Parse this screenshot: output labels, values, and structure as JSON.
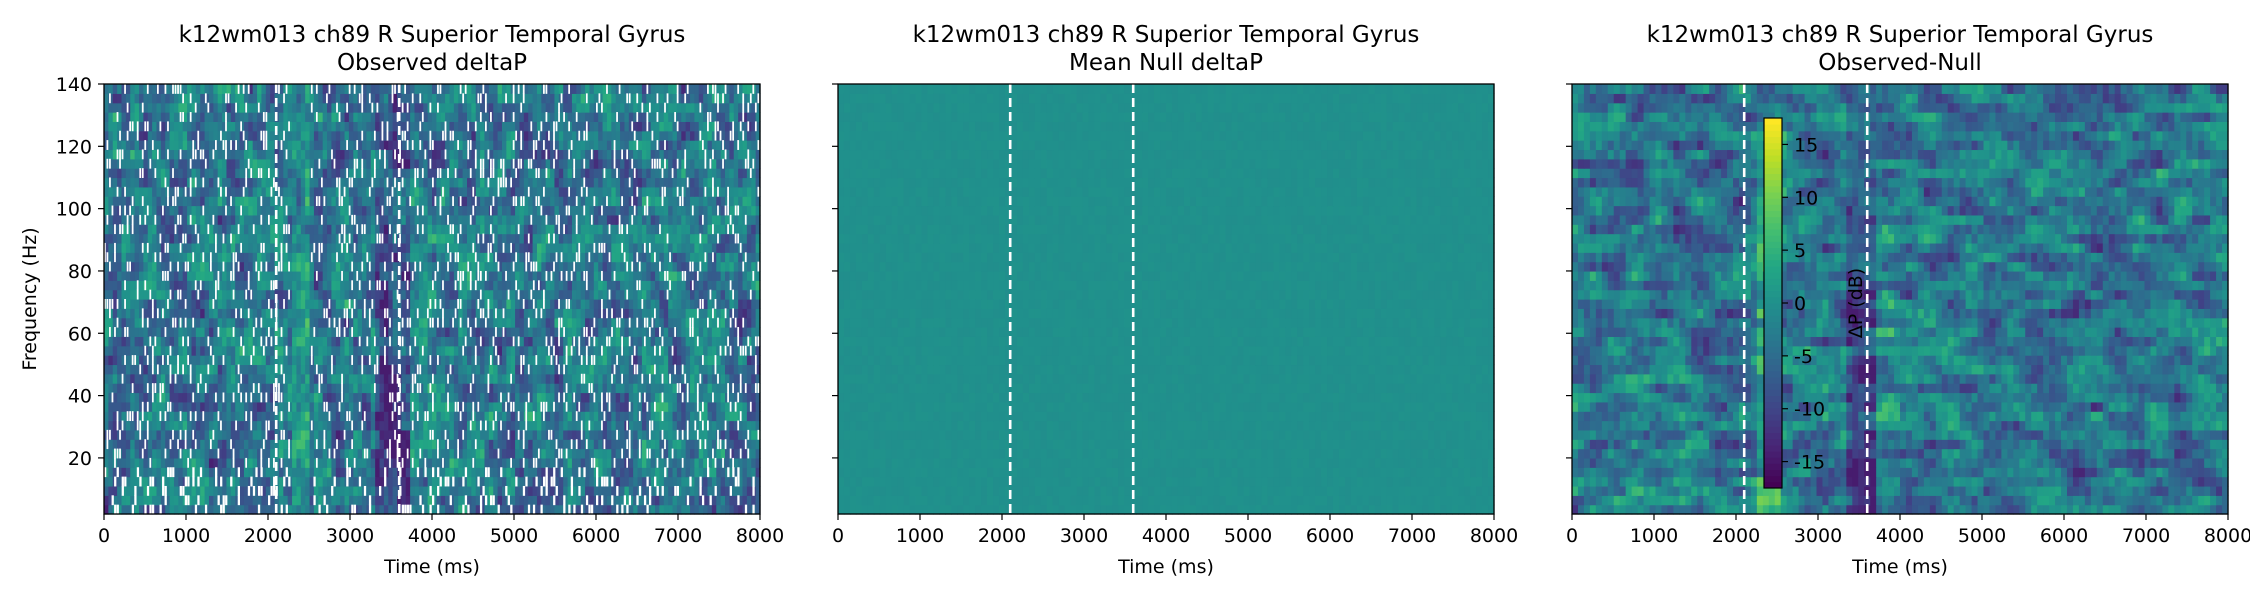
{
  "chart_data": [
    {
      "type": "heatmap",
      "title": "k12wm013 ch89 R Superior Temporal Gyrus",
      "subtitle": "Observed deltaP",
      "xlabel": "Time (ms)",
      "ylabel": "Frequency (Hz)",
      "xlim": [
        0,
        8000
      ],
      "ylim": [
        2,
        140
      ],
      "xticks": [
        0,
        1000,
        2000,
        3000,
        4000,
        5000,
        6000,
        7000,
        8000
      ],
      "yticks": [
        20,
        40,
        60,
        80,
        100,
        120,
        140
      ],
      "show_ytick_labels": true,
      "event_lines_ms": [
        2100,
        3600
      ],
      "event_line_style": "white dashed",
      "masked_cells": "white (non-significant)",
      "colormap": "viridis"
    },
    {
      "type": "heatmap",
      "title": "k12wm013 ch89 R Superior Temporal Gyrus",
      "subtitle": "Mean Null deltaP",
      "xlabel": "Time (ms)",
      "ylabel": "",
      "xlim": [
        0,
        8000
      ],
      "ylim": [
        2,
        140
      ],
      "xticks": [
        0,
        1000,
        2000,
        3000,
        4000,
        5000,
        6000,
        7000,
        8000
      ],
      "yticks": [
        20,
        40,
        60,
        80,
        100,
        120,
        140
      ],
      "show_ytick_labels": false,
      "event_lines_ms": [
        2100,
        3600
      ],
      "event_line_style": "white dashed",
      "colormap": "viridis"
    },
    {
      "type": "heatmap",
      "title": "k12wm013 ch89 R Superior Temporal Gyrus",
      "subtitle": "Observed-Null",
      "xlabel": "Time (ms)",
      "ylabel": "",
      "xlim": [
        0,
        8000
      ],
      "ylim": [
        2,
        140
      ],
      "xticks": [
        0,
        1000,
        2000,
        3000,
        4000,
        5000,
        6000,
        7000,
        8000
      ],
      "yticks": [
        20,
        40,
        60,
        80,
        100,
        120,
        140
      ],
      "show_ytick_labels": false,
      "event_lines_ms": [
        2100,
        3600
      ],
      "event_line_style": "white dashed",
      "colormap": "viridis",
      "colorbar": {
        "label": "ΔP (dB)",
        "vmin": -17.5,
        "vmax": 17.5,
        "ticks": [
          -15,
          -10,
          -5,
          0,
          5,
          10,
          15
        ]
      }
    }
  ]
}
